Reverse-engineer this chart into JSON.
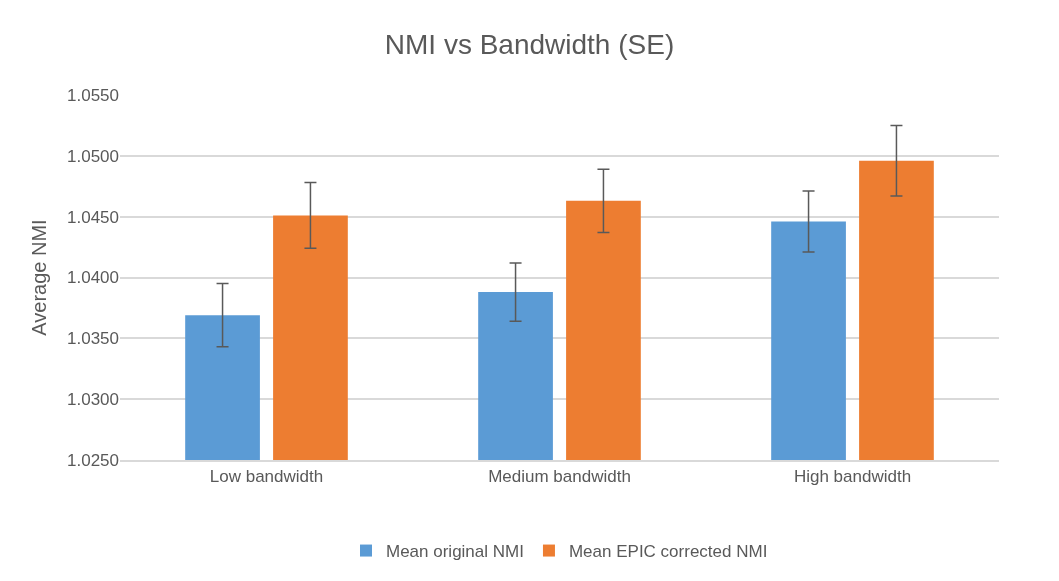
{
  "chart_data": {
    "type": "bar",
    "title": "NMI vs Bandwidth (SE)",
    "ylabel": "Average NMI",
    "categories": [
      "Low bandwidth",
      "Medium bandwidth",
      "High bandwidth"
    ],
    "series": [
      {
        "name": "Mean original NMI",
        "color": "#5b9bd5",
        "values": [
          1.0369,
          1.0388,
          1.0446
        ],
        "errors": [
          0.0026,
          0.0024,
          0.0025
        ]
      },
      {
        "name": "Mean EPIC corrected NMI",
        "color": "#ed7d31",
        "values": [
          1.0451,
          1.0463,
          1.0496
        ],
        "errors": [
          0.0027,
          0.0026,
          0.0029
        ]
      }
    ],
    "ylim": [
      1.025,
      1.055
    ],
    "yticks": [
      {
        "value": 1.025,
        "label": "1.0250"
      },
      {
        "value": 1.03,
        "label": "1.0300"
      },
      {
        "value": 1.035,
        "label": "1.0350"
      },
      {
        "value": 1.04,
        "label": "1.0400"
      },
      {
        "value": 1.045,
        "label": "1.0450"
      },
      {
        "value": 1.05,
        "label": "1.0500"
      },
      {
        "value": 1.055,
        "label": "1.0550"
      }
    ],
    "grid": "y",
    "legend": "bottom"
  }
}
